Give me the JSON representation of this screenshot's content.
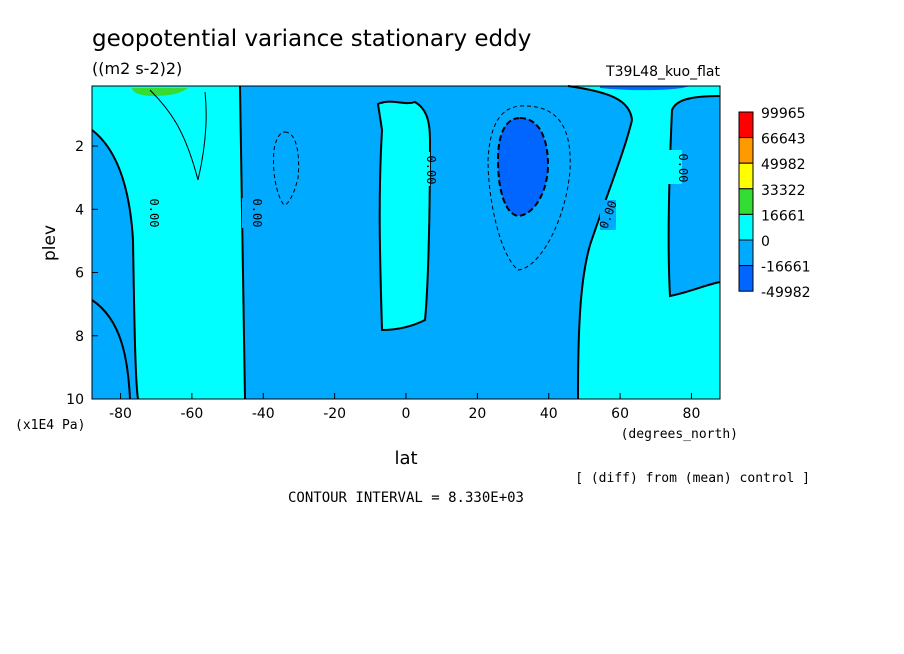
{
  "chart_data": {
    "type": "heatmap",
    "title": "geopotential variance stationary eddy",
    "units": "((m2 s-2)2)",
    "experiment": "T39L48_kuo_flat",
    "xlabel": "lat",
    "xunits": "(degrees_north)",
    "ylabel": "plev",
    "yunits": "(x1E4 Pa)",
    "xlim": [
      -88,
      88
    ],
    "ylim": [
      10,
      0.1
    ],
    "x_ticks": [
      -80,
      -60,
      -40,
      -20,
      0,
      20,
      40,
      60,
      80
    ],
    "y_ticks": [
      2,
      4,
      6,
      8,
      10
    ],
    "contour_interval": "CONTOUR INTERVAL = 8.330E+03",
    "note": "[ (diff) from (mean) control ]",
    "contour_labels": [
      "0.00",
      "0.00",
      "0.00",
      "0.00",
      "0.00"
    ],
    "legend": {
      "placement": "right",
      "levels": [
        "99965",
        "66643",
        "49982",
        "33322",
        "16661",
        "0",
        "-16661",
        "-49982"
      ],
      "colors": [
        "#ff0000",
        "#ff9900",
        "#ffff00",
        "#33dd33",
        "#00ffff",
        "#00aaff",
        "#0066ff"
      ]
    },
    "regions": [
      {
        "name": "positive-south",
        "sign": "+",
        "lat": [
          -88,
          -45
        ],
        "plev": [
          0.1,
          10
        ]
      },
      {
        "name": "negative-southmid",
        "sign": "-",
        "lat": [
          -45,
          -8
        ],
        "plev": [
          0.1,
          10
        ]
      },
      {
        "name": "positive-equatorial-tongue",
        "sign": "+",
        "lat": [
          -8,
          7
        ],
        "plev": [
          0.5,
          7.8
        ]
      },
      {
        "name": "negative-northmid",
        "sign": "-",
        "lat": [
          7,
          48
        ],
        "plev": [
          0.1,
          10
        ]
      },
      {
        "name": "strong-negative-core",
        "sign": "--",
        "lat": [
          25,
          40
        ],
        "plev": [
          1.0,
          4.2
        ]
      },
      {
        "name": "positive-north",
        "sign": "+",
        "lat": [
          48,
          88
        ],
        "plev": [
          0.1,
          10
        ]
      },
      {
        "name": "weak-positive-south-cap",
        "sign": "++",
        "lat": [
          -72,
          -60
        ],
        "plev": [
          0.1,
          0.3
        ]
      }
    ]
  }
}
